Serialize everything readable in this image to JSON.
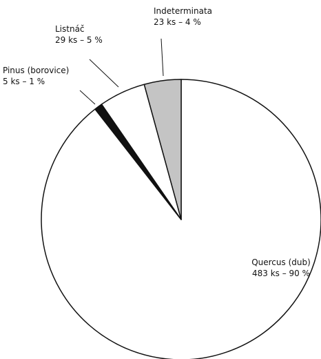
{
  "chart_data": {
    "type": "pie",
    "categories": [
      "Quercus (dub)",
      "Pinus (borovice)",
      "Listnáč",
      "Indeterminata"
    ],
    "values": [
      483,
      5,
      29,
      23
    ],
    "value_labels": [
      "483 ks – 90 %",
      "5 ks – 1 %",
      "29 ks – 5 %",
      "23 ks – 4 %"
    ],
    "colors": [
      "#ffffff",
      "#111111",
      "#ffffff",
      "#c4c4c4"
    ],
    "direction": "clockwise"
  }
}
